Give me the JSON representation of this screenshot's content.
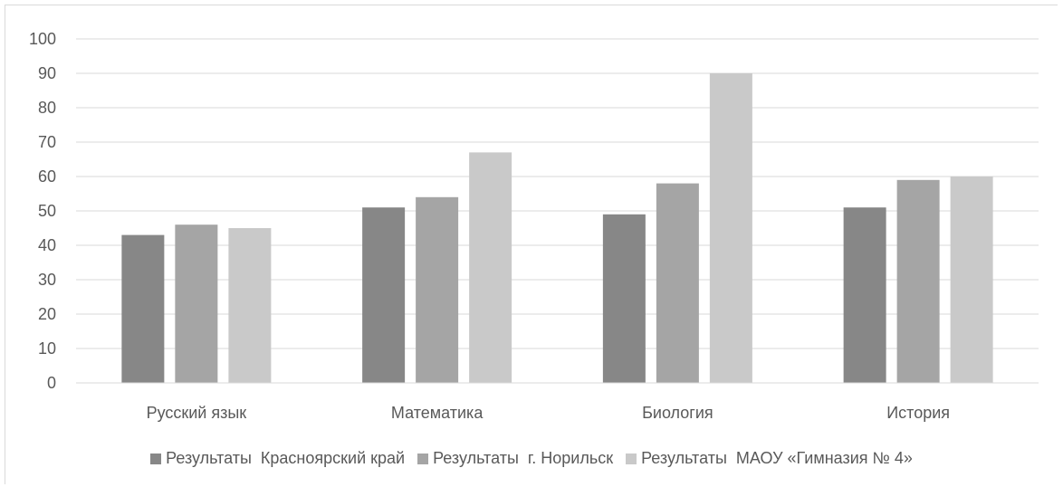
{
  "chart_data": {
    "type": "bar",
    "title": "",
    "xlabel": "",
    "ylabel": "",
    "ylim": [
      0,
      100
    ],
    "yticks": [
      0,
      10,
      20,
      30,
      40,
      50,
      60,
      70,
      80,
      90,
      100
    ],
    "grid": true,
    "legend_position": "bottom",
    "categories": [
      "Русский язык",
      "Математика",
      "Биология",
      "История"
    ],
    "series": [
      {
        "name": "Результаты  Красноярский край",
        "color": "#878787",
        "values": [
          43,
          51,
          49,
          51
        ]
      },
      {
        "name": "Результаты  г. Норильск",
        "color": "#a5a5a5",
        "values": [
          46,
          54,
          58,
          59
        ]
      },
      {
        "name": "Результаты  МАОУ «Гимназия № 4»",
        "color": "#c9c9c9",
        "values": [
          45,
          67,
          90,
          60
        ]
      }
    ]
  }
}
